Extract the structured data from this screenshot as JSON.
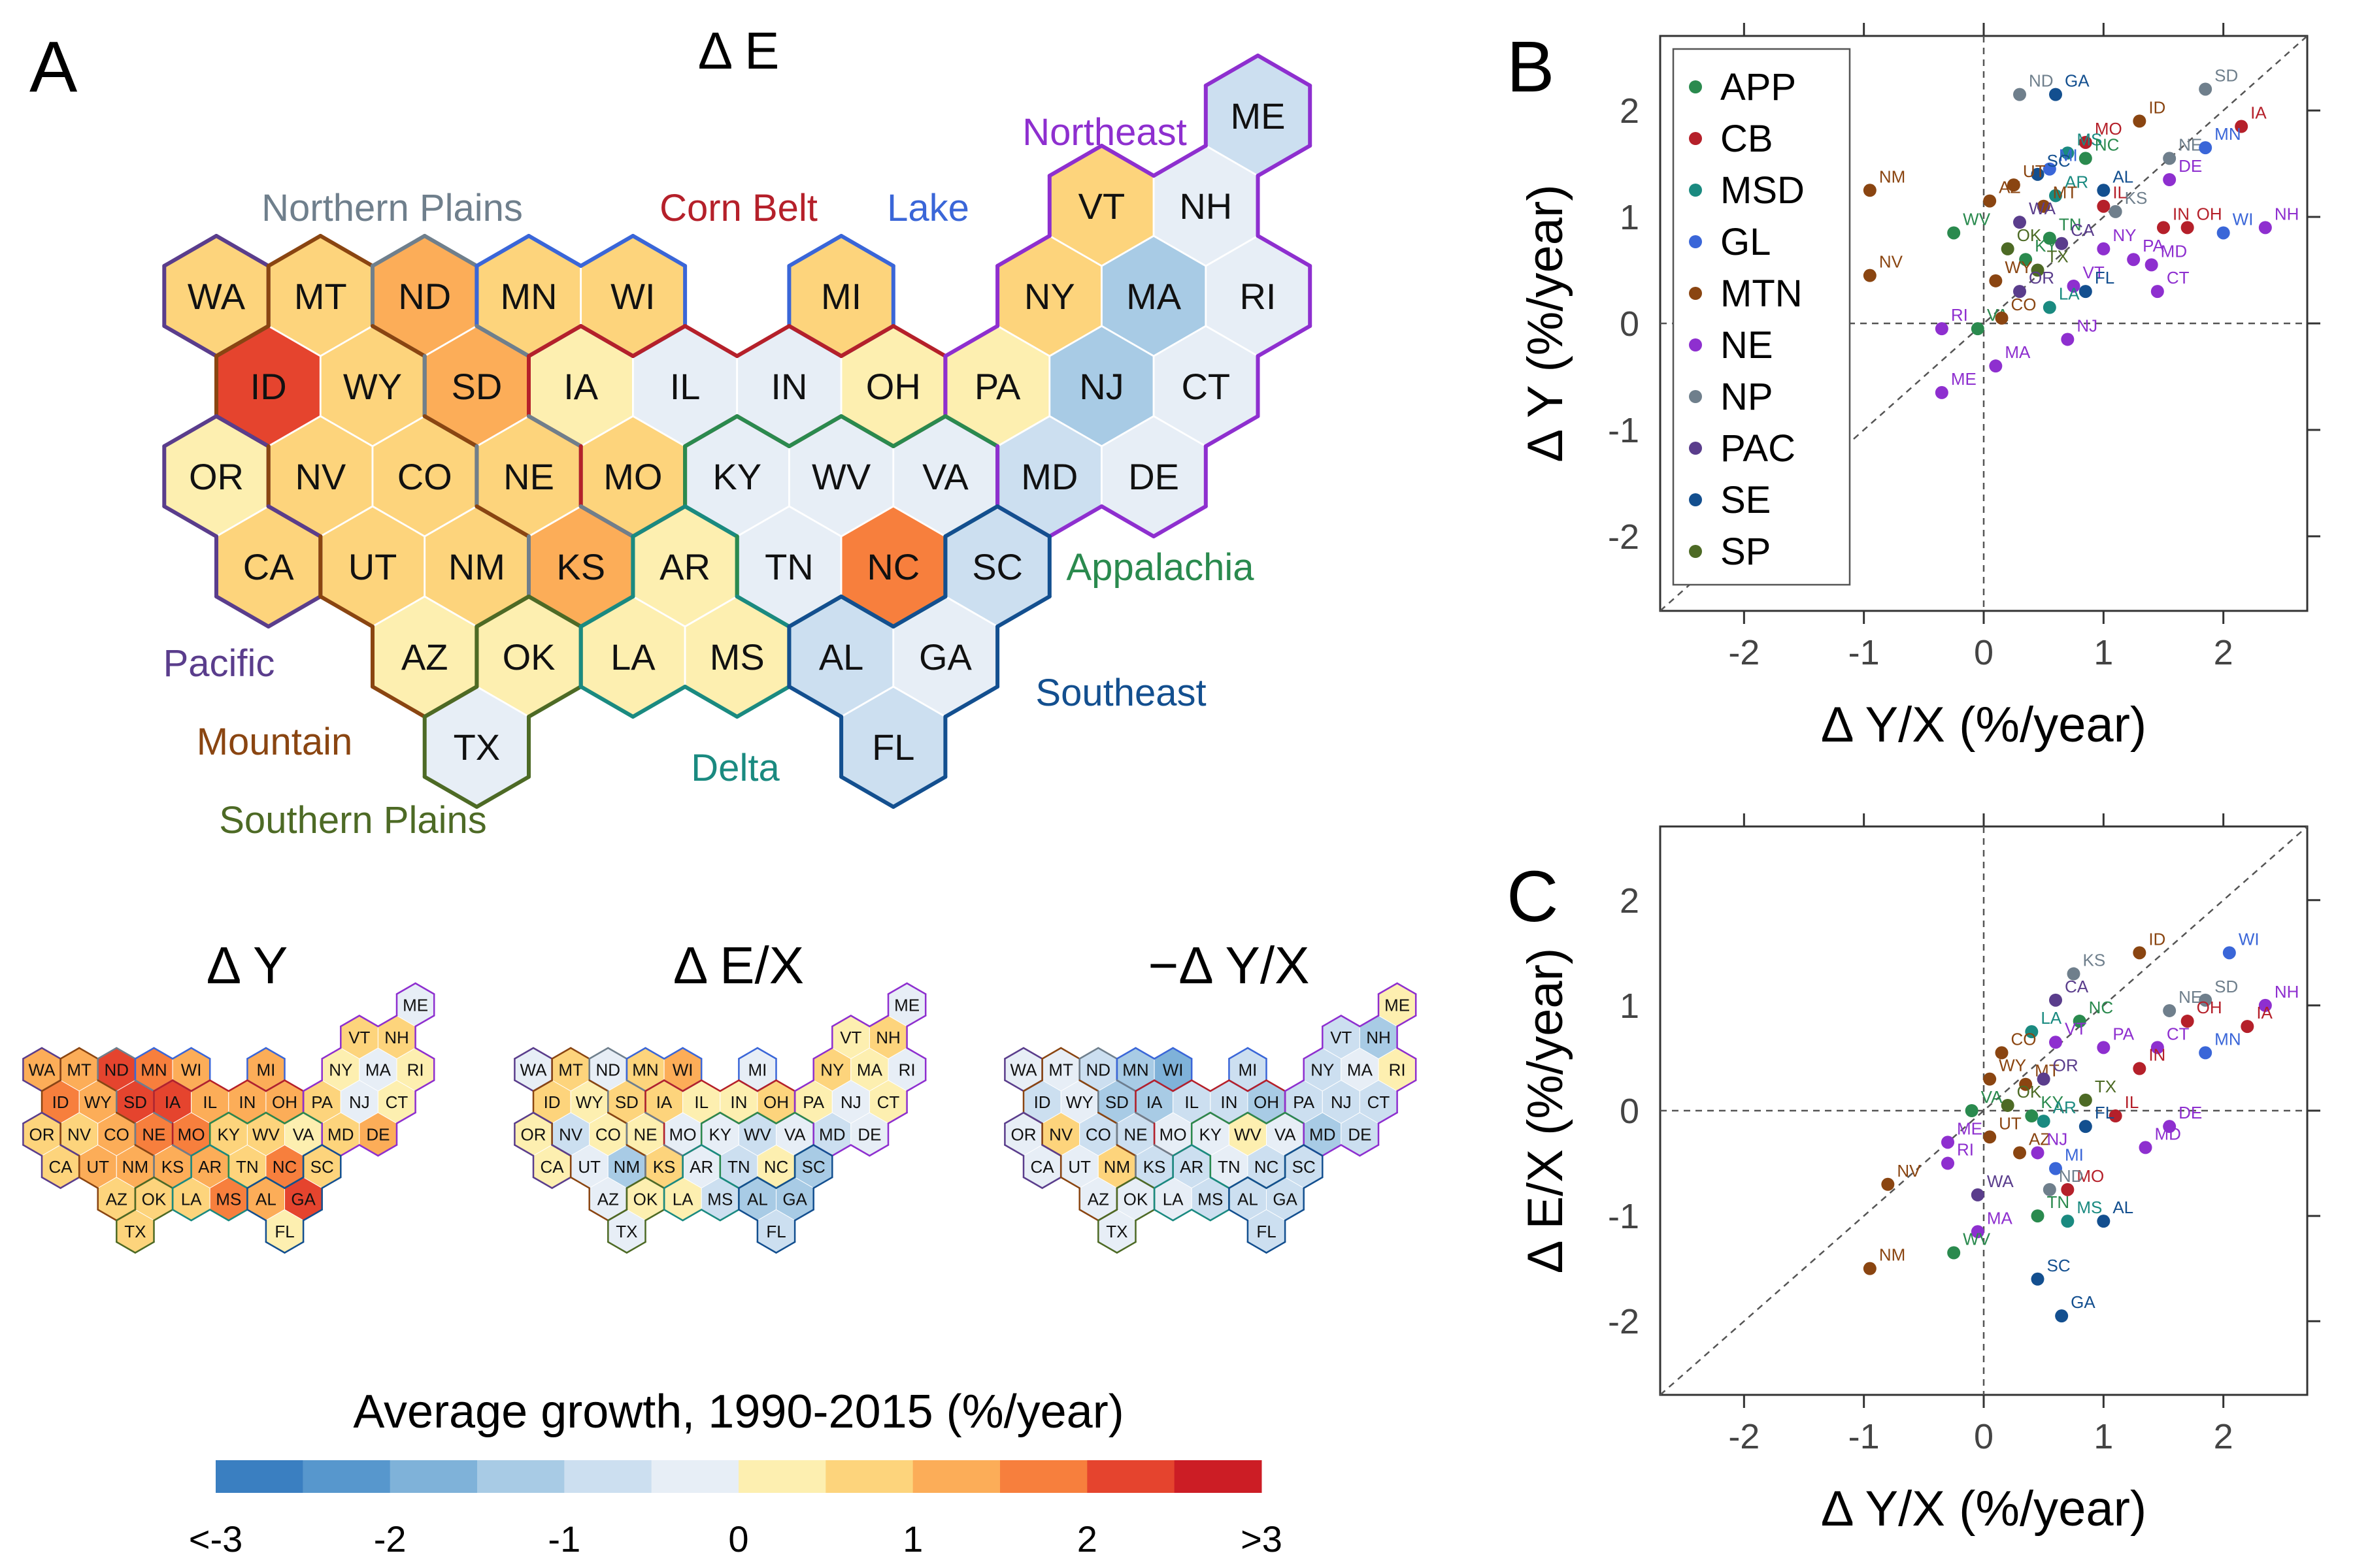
{
  "panel_labels": {
    "A": "A",
    "B": "B",
    "C": "C"
  },
  "hex_titles": {
    "dE": "Δ E",
    "dY": "Δ Y",
    "dEX": "Δ E/X",
    "ndYX": "−Δ Y/X"
  },
  "region_labels": [
    {
      "key": "NP",
      "text": "Northern Plains",
      "color": "#6f7f8c"
    },
    {
      "key": "CB",
      "text": "Corn Belt",
      "color": "#b5202a"
    },
    {
      "key": "LAKE",
      "text": "Lake",
      "color": "#3a66d8"
    },
    {
      "key": "NE",
      "text": "Northeast",
      "color": "#8e2fcf"
    },
    {
      "key": "APP",
      "text": "Appalachia",
      "color": "#2a8a4e"
    },
    {
      "key": "PAC",
      "text": "Pacific",
      "color": "#5a3d8c"
    },
    {
      "key": "MTN",
      "text": "Mountain",
      "color": "#8a4511"
    },
    {
      "key": "SP",
      "text": "Southern Plains",
      "color": "#4d6a25"
    },
    {
      "key": "DEL",
      "text": "Delta",
      "color": "#1a8a80"
    },
    {
      "key": "SE",
      "text": "Southeast",
      "color": "#134f8f"
    }
  ],
  "colorbar": {
    "title": "Average growth, 1990-2015 (%/year)",
    "colors": [
      "#3a7fc1",
      "#5797cd",
      "#7fb2d9",
      "#a8cbe5",
      "#ccdff0",
      "#e7eef6",
      "#fdefb0",
      "#fdd47c",
      "#fcad58",
      "#f77f3d",
      "#e5442e",
      "#cc1d25"
    ],
    "tick_labels": [
      "<-3",
      "-2",
      "-1",
      "0",
      "1",
      "2",
      ">3"
    ]
  },
  "chart_data": [
    {
      "type": "scatter",
      "panel": "B",
      "xlabel": "Δ Y/X (%/year)",
      "ylabel": "Δ Y (%/year)",
      "xlim": [
        -2.7,
        2.7
      ],
      "ylim": [
        -2.7,
        2.7
      ],
      "xticks": [
        "-2",
        "-1",
        "0",
        "1",
        "2"
      ],
      "yticks": [
        "-2",
        "-1",
        "0",
        "1",
        "2"
      ],
      "legend": [
        {
          "label": "APP",
          "color": "#2a8a4e"
        },
        {
          "label": "CB",
          "color": "#b5202a"
        },
        {
          "label": "MSD",
          "color": "#1a8a80"
        },
        {
          "label": "GL",
          "color": "#3a66d8"
        },
        {
          "label": "MTN",
          "color": "#8a4511"
        },
        {
          "label": "NE",
          "color": "#8e2fcf"
        },
        {
          "label": "NP",
          "color": "#6f7f8c"
        },
        {
          "label": "PAC",
          "color": "#5a3d8c"
        },
        {
          "label": "SE",
          "color": "#134f8f"
        },
        {
          "label": "SP",
          "color": "#4d6a25"
        }
      ],
      "points": [
        {
          "state": "GA",
          "g": "SE",
          "x": 0.6,
          "y": 2.15
        },
        {
          "state": "ND",
          "g": "NP",
          "x": 0.3,
          "y": 2.15
        },
        {
          "state": "SD",
          "g": "NP",
          "x": 1.85,
          "y": 2.2
        },
        {
          "state": "ID",
          "g": "MTN",
          "x": 1.3,
          "y": 1.9
        },
        {
          "state": "IA",
          "g": "CB",
          "x": 2.15,
          "y": 1.85
        },
        {
          "state": "MO",
          "g": "CB",
          "x": 0.85,
          "y": 1.7
        },
        {
          "state": "MS",
          "g": "MSD",
          "x": 0.7,
          "y": 1.6
        },
        {
          "state": "NE",
          "g": "NP",
          "x": 1.55,
          "y": 1.55
        },
        {
          "state": "MN",
          "g": "GL",
          "x": 1.85,
          "y": 1.65
        },
        {
          "state": "NC",
          "g": "APP",
          "x": 0.85,
          "y": 1.55
        },
        {
          "state": "MI",
          "g": "GL",
          "x": 0.55,
          "y": 1.45
        },
        {
          "state": "SC",
          "g": "SE",
          "x": 0.45,
          "y": 1.4
        },
        {
          "state": "NM",
          "g": "MTN",
          "x": -0.95,
          "y": 1.25
        },
        {
          "state": "UT",
          "g": "MTN",
          "x": 0.25,
          "y": 1.3
        },
        {
          "state": "AR",
          "g": "MSD",
          "x": 0.6,
          "y": 1.2
        },
        {
          "state": "AL",
          "g": "SE",
          "x": 1.0,
          "y": 1.25
        },
        {
          "state": "AZ",
          "g": "MTN",
          "x": 0.05,
          "y": 1.15
        },
        {
          "state": "MT",
          "g": "MTN",
          "x": 0.5,
          "y": 1.1
        },
        {
          "state": "DE",
          "g": "NE",
          "x": 1.55,
          "y": 1.35
        },
        {
          "state": "KS",
          "g": "NP",
          "x": 1.1,
          "y": 1.05
        },
        {
          "state": "IL",
          "g": "CB",
          "x": 1.0,
          "y": 1.1
        },
        {
          "state": "NH",
          "g": "NE",
          "x": 2.35,
          "y": 0.9
        },
        {
          "state": "IN",
          "g": "CB",
          "x": 1.5,
          "y": 0.9
        },
        {
          "state": "OH",
          "g": "CB",
          "x": 1.7,
          "y": 0.9
        },
        {
          "state": "WA",
          "g": "PAC",
          "x": 0.3,
          "y": 0.95
        },
        {
          "state": "WV",
          "g": "APP",
          "x": -0.25,
          "y": 0.85
        },
        {
          "state": "TN",
          "g": "APP",
          "x": 0.55,
          "y": 0.8
        },
        {
          "state": "CA",
          "g": "PAC",
          "x": 0.65,
          "y": 0.75
        },
        {
          "state": "WI",
          "g": "GL",
          "x": 2.0,
          "y": 0.85
        },
        {
          "state": "OK",
          "g": "SP",
          "x": 0.2,
          "y": 0.7
        },
        {
          "state": "KY",
          "g": "APP",
          "x": 0.35,
          "y": 0.6
        },
        {
          "state": "NY",
          "g": "NE",
          "x": 1.0,
          "y": 0.7
        },
        {
          "state": "NV",
          "g": "MTN",
          "x": -0.95,
          "y": 0.45
        },
        {
          "state": "TX",
          "g": "SP",
          "x": 0.45,
          "y": 0.5
        },
        {
          "state": "PA",
          "g": "NE",
          "x": 1.25,
          "y": 0.6
        },
        {
          "state": "MD",
          "g": "NE",
          "x": 1.4,
          "y": 0.55
        },
        {
          "state": "WY",
          "g": "MTN",
          "x": 0.1,
          "y": 0.4
        },
        {
          "state": "OR",
          "g": "PAC",
          "x": 0.3,
          "y": 0.3
        },
        {
          "state": "VT",
          "g": "NE",
          "x": 0.75,
          "y": 0.35
        },
        {
          "state": "CT",
          "g": "NE",
          "x": 1.45,
          "y": 0.3
        },
        {
          "state": "FL",
          "g": "SE",
          "x": 0.85,
          "y": 0.3
        },
        {
          "state": "LA",
          "g": "MSD",
          "x": 0.55,
          "y": 0.15
        },
        {
          "state": "RI",
          "g": "NE",
          "x": -0.35,
          "y": -0.05
        },
        {
          "state": "VA",
          "g": "APP",
          "x": -0.05,
          "y": -0.05
        },
        {
          "state": "CO",
          "g": "MTN",
          "x": 0.15,
          "y": 0.05
        },
        {
          "state": "NJ",
          "g": "NE",
          "x": 0.7,
          "y": -0.15
        },
        {
          "state": "MA",
          "g": "NE",
          "x": 0.1,
          "y": -0.4
        },
        {
          "state": "ME",
          "g": "NE",
          "x": -0.35,
          "y": -0.65
        }
      ]
    },
    {
      "type": "scatter",
      "panel": "C",
      "xlabel": "Δ Y/X (%/year)",
      "ylabel": "Δ E/X (%/year)",
      "xlim": [
        -2.7,
        2.7
      ],
      "ylim": [
        -2.7,
        2.7
      ],
      "xticks": [
        "-2",
        "-1",
        "0",
        "1",
        "2"
      ],
      "yticks": [
        "-2",
        "-1",
        "0",
        "1",
        "2"
      ],
      "points": [
        {
          "state": "WI",
          "g": "GL",
          "x": 2.05,
          "y": 1.5
        },
        {
          "state": "NH",
          "g": "NE",
          "x": 2.35,
          "y": 1.0
        },
        {
          "state": "ID",
          "g": "MTN",
          "x": 1.3,
          "y": 1.5
        },
        {
          "state": "KS",
          "g": "NP",
          "x": 0.75,
          "y": 1.3
        },
        {
          "state": "CA",
          "g": "PAC",
          "x": 0.6,
          "y": 1.05
        },
        {
          "state": "NE",
          "g": "NP",
          "x": 1.55,
          "y": 0.95
        },
        {
          "state": "SD",
          "g": "NP",
          "x": 1.85,
          "y": 1.05
        },
        {
          "state": "IA",
          "g": "CB",
          "x": 2.2,
          "y": 0.8
        },
        {
          "state": "NC",
          "g": "APP",
          "x": 0.8,
          "y": 0.85
        },
        {
          "state": "OH",
          "g": "CB",
          "x": 1.7,
          "y": 0.85
        },
        {
          "state": "LA",
          "g": "MSD",
          "x": 0.4,
          "y": 0.75
        },
        {
          "state": "VT",
          "g": "NE",
          "x": 0.6,
          "y": 0.65
        },
        {
          "state": "PA",
          "g": "NE",
          "x": 1.0,
          "y": 0.6
        },
        {
          "state": "CT",
          "g": "NE",
          "x": 1.45,
          "y": 0.6
        },
        {
          "state": "MN",
          "g": "GL",
          "x": 1.85,
          "y": 0.55
        },
        {
          "state": "CO",
          "g": "MTN",
          "x": 0.15,
          "y": 0.55
        },
        {
          "state": "WY",
          "g": "MTN",
          "x": 0.05,
          "y": 0.3
        },
        {
          "state": "MT",
          "g": "MTN",
          "x": 0.35,
          "y": 0.25
        },
        {
          "state": "OR",
          "g": "PAC",
          "x": 0.5,
          "y": 0.3
        },
        {
          "state": "IN",
          "g": "CB",
          "x": 1.3,
          "y": 0.4
        },
        {
          "state": "TX",
          "g": "SP",
          "x": 0.85,
          "y": 0.1
        },
        {
          "state": "OK",
          "g": "SP",
          "x": 0.2,
          "y": 0.05
        },
        {
          "state": "KY",
          "g": "APP",
          "x": 0.4,
          "y": -0.05
        },
        {
          "state": "VA",
          "g": "APP",
          "x": -0.1,
          "y": 0.0
        },
        {
          "state": "AR",
          "g": "MSD",
          "x": 0.5,
          "y": -0.1
        },
        {
          "state": "IL",
          "g": "CB",
          "x": 1.1,
          "y": -0.05
        },
        {
          "state": "DE",
          "g": "NE",
          "x": 1.55,
          "y": -0.15
        },
        {
          "state": "UT",
          "g": "MTN",
          "x": 0.05,
          "y": -0.25
        },
        {
          "state": "FL",
          "g": "SE",
          "x": 0.85,
          "y": -0.15
        },
        {
          "state": "ME",
          "g": "NE",
          "x": -0.3,
          "y": -0.3
        },
        {
          "state": "MD",
          "g": "NE",
          "x": 1.35,
          "y": -0.35
        },
        {
          "state": "RI",
          "g": "NE",
          "x": -0.3,
          "y": -0.5
        },
        {
          "state": "AZ",
          "g": "MTN",
          "x": 0.3,
          "y": -0.4
        },
        {
          "state": "NJ",
          "g": "NE",
          "x": 0.45,
          "y": -0.4
        },
        {
          "state": "MI",
          "g": "GL",
          "x": 0.6,
          "y": -0.55
        },
        {
          "state": "MO",
          "g": "CB",
          "x": 0.7,
          "y": -0.75
        },
        {
          "state": "NV",
          "g": "MTN",
          "x": -0.8,
          "y": -0.7
        },
        {
          "state": "ND",
          "g": "NP",
          "x": 0.55,
          "y": -0.75
        },
        {
          "state": "WA",
          "g": "PAC",
          "x": -0.05,
          "y": -0.8
        },
        {
          "state": "TN",
          "g": "APP",
          "x": 0.45,
          "y": -1.0
        },
        {
          "state": "MS",
          "g": "MSD",
          "x": 0.7,
          "y": -1.05
        },
        {
          "state": "AL",
          "g": "SE",
          "x": 1.0,
          "y": -1.05
        },
        {
          "state": "MA",
          "g": "NE",
          "x": -0.05,
          "y": -1.15
        },
        {
          "state": "WV",
          "g": "APP",
          "x": -0.25,
          "y": -1.35
        },
        {
          "state": "NM",
          "g": "MTN",
          "x": -0.95,
          "y": -1.5
        },
        {
          "state": "SC",
          "g": "SE",
          "x": 0.45,
          "y": -1.6
        },
        {
          "state": "GA",
          "g": "SE",
          "x": 0.65,
          "y": -1.95
        }
      ]
    }
  ],
  "hexmap": {
    "tiles": [
      [
        "WA",
        "PAC",
        0,
        0
      ],
      [
        "MT",
        "MTN",
        1,
        0
      ],
      [
        "ND",
        "NP",
        2,
        0
      ],
      [
        "MN",
        "GL",
        3,
        0
      ],
      [
        "WI",
        "GL",
        4,
        0
      ],
      [
        "MI",
        "GL",
        6,
        0
      ],
      [
        "NY",
        "NE",
        8,
        0
      ],
      [
        "MA",
        "NE",
        9,
        0
      ],
      [
        "RI",
        "NE",
        10,
        0
      ],
      [
        "ID",
        "MTN",
        0.5,
        1
      ],
      [
        "WY",
        "MTN",
        1.5,
        1
      ],
      [
        "SD",
        "NP",
        2.5,
        1
      ],
      [
        "IA",
        "CB",
        3.5,
        1
      ],
      [
        "IL",
        "CB",
        4.5,
        1
      ],
      [
        "IN",
        "CB",
        5.5,
        1
      ],
      [
        "OH",
        "CB",
        6.5,
        1
      ],
      [
        "PA",
        "NE",
        7.5,
        1
      ],
      [
        "NJ",
        "NE",
        8.5,
        1
      ],
      [
        "CT",
        "NE",
        9.5,
        1
      ],
      [
        "OR",
        "PAC",
        0,
        2
      ],
      [
        "NV",
        "MTN",
        1,
        2
      ],
      [
        "CO",
        "MTN",
        2,
        2
      ],
      [
        "NE",
        "NP",
        3,
        2
      ],
      [
        "MO",
        "CB",
        4,
        2
      ],
      [
        "KY",
        "APP",
        5,
        2
      ],
      [
        "WV",
        "APP",
        6,
        2
      ],
      [
        "VA",
        "APP",
        7,
        2
      ],
      [
        "MD",
        "NE",
        8,
        2
      ],
      [
        "DE",
        "NE",
        9,
        2
      ],
      [
        "CA",
        "PAC",
        0.5,
        3
      ],
      [
        "UT",
        "MTN",
        1.5,
        3
      ],
      [
        "NM",
        "MTN",
        2.5,
        3
      ],
      [
        "KS",
        "NP",
        3.5,
        3
      ],
      [
        "AR",
        "DEL",
        4.5,
        3
      ],
      [
        "TN",
        "APP",
        5.5,
        3
      ],
      [
        "NC",
        "APP",
        6.5,
        3
      ],
      [
        "SC",
        "SE",
        7.5,
        3
      ],
      [
        "AZ",
        "MTN",
        2,
        4
      ],
      [
        "OK",
        "SP",
        3,
        4
      ],
      [
        "LA",
        "DEL",
        4,
        4
      ],
      [
        "MS",
        "DEL",
        5,
        4
      ],
      [
        "AL",
        "SE",
        6,
        4
      ],
      [
        "GA",
        "SE",
        7,
        4
      ],
      [
        "TX",
        "SP",
        2.5,
        5
      ],
      [
        "FL",
        "SE",
        6.5,
        5
      ],
      [
        "VT",
        "NE",
        8.5,
        -1
      ],
      [
        "NH",
        "NE",
        9.5,
        -1
      ],
      [
        "ME",
        "NE",
        10,
        -2
      ]
    ],
    "region_colors": {
      "PAC": "#5a3d8c",
      "MTN": "#8a4511",
      "NP": "#6f7f8c",
      "GL": "#3a66d8",
      "CB": "#b5202a",
      "NE": "#8e2fcf",
      "APP": "#2a8a4e",
      "DEL": "#1a8a80",
      "SP": "#4d6a25",
      "SE": "#134f8f"
    },
    "dE": {
      "WA": 7,
      "MT": 7,
      "ND": 8,
      "MN": 7,
      "WI": 7,
      "MI": 7,
      "NY": 7,
      "MA": 3,
      "RI": 5,
      "ID": 10,
      "WY": 7,
      "SD": 8,
      "IA": 6,
      "IL": 5,
      "IN": 5,
      "OH": 6,
      "PA": 6,
      "NJ": 3,
      "CT": 5,
      "OR": 6,
      "NV": 7,
      "CO": 7,
      "NE": 7,
      "MO": 7,
      "KY": 5,
      "WV": 5,
      "VA": 5,
      "MD": 4,
      "DE": 5,
      "CA": 7,
      "UT": 7,
      "NM": 7,
      "KS": 8,
      "AR": 6,
      "TN": 5,
      "NC": 9,
      "SC": 4,
      "AZ": 6,
      "OK": 6,
      "LA": 6,
      "MS": 6,
      "AL": 4,
      "GA": 5,
      "TX": 5,
      "FL": 4,
      "VT": 7,
      "NH": 5,
      "ME": 4
    },
    "dY": {
      "WA": 8,
      "MT": 8,
      "ND": 10,
      "MN": 9,
      "WI": 8,
      "MI": 8,
      "NY": 6,
      "MA": 5,
      "RI": 6,
      "ID": 9,
      "WY": 8,
      "SD": 10,
      "IA": 10,
      "IL": 8,
      "IN": 8,
      "OH": 8,
      "PA": 7,
      "NJ": 5,
      "CT": 6,
      "OR": 7,
      "NV": 7,
      "CO": 8,
      "NE": 9,
      "MO": 9,
      "KY": 7,
      "WV": 7,
      "VA": 6,
      "MD": 7,
      "DE": 8,
      "CA": 7,
      "UT": 8,
      "NM": 8,
      "KS": 8,
      "AR": 8,
      "TN": 7,
      "NC": 9,
      "SC": 7,
      "AZ": 7,
      "OK": 7,
      "LA": 7,
      "MS": 9,
      "AL": 8,
      "GA": 10,
      "TX": 7,
      "FL": 6,
      "VT": 7,
      "NH": 7,
      "ME": 5
    },
    "dEX": {
      "WA": 5,
      "MT": 7,
      "ND": 5,
      "MN": 7,
      "WI": 8,
      "MI": 5,
      "NY": 7,
      "MA": 6,
      "RI": 5,
      "ID": 7,
      "WY": 6,
      "SD": 7,
      "IA": 7,
      "IL": 6,
      "IN": 6,
      "OH": 7,
      "PA": 6,
      "NJ": 5,
      "CT": 6,
      "OR": 6,
      "NV": 4,
      "CO": 6,
      "NE": 6,
      "MO": 5,
      "KY": 5,
      "WV": 4,
      "VA": 5,
      "MD": 4,
      "DE": 5,
      "CA": 6,
      "UT": 5,
      "NM": 3,
      "KS": 7,
      "AR": 5,
      "TN": 4,
      "NC": 6,
      "SC": 3,
      "AZ": 5,
      "OK": 6,
      "LA": 6,
      "MS": 4,
      "AL": 3,
      "GA": 3,
      "TX": 5,
      "FL": 4,
      "VT": 6,
      "NH": 7,
      "ME": 5
    },
    "ndYX": {
      "WA": 5,
      "MT": 5,
      "ND": 4,
      "MN": 3,
      "WI": 2,
      "MI": 4,
      "NY": 4,
      "MA": 5,
      "RI": 6,
      "ID": 4,
      "WY": 5,
      "SD": 3,
      "IA": 3,
      "IL": 4,
      "IN": 4,
      "OH": 3,
      "PA": 4,
      "NJ": 4,
      "CT": 4,
      "OR": 5,
      "NV": 7,
      "CO": 4,
      "NE": 4,
      "MO": 5,
      "KY": 5,
      "WV": 6,
      "VA": 5,
      "MD": 3,
      "DE": 4,
      "CA": 5,
      "UT": 5,
      "NM": 7,
      "KS": 4,
      "AR": 4,
      "TN": 5,
      "NC": 4,
      "SC": 4,
      "AZ": 5,
      "OK": 5,
      "LA": 5,
      "MS": 4,
      "AL": 4,
      "GA": 4,
      "TX": 5,
      "FL": 4,
      "VT": 4,
      "NH": 3,
      "ME": 6
    }
  }
}
